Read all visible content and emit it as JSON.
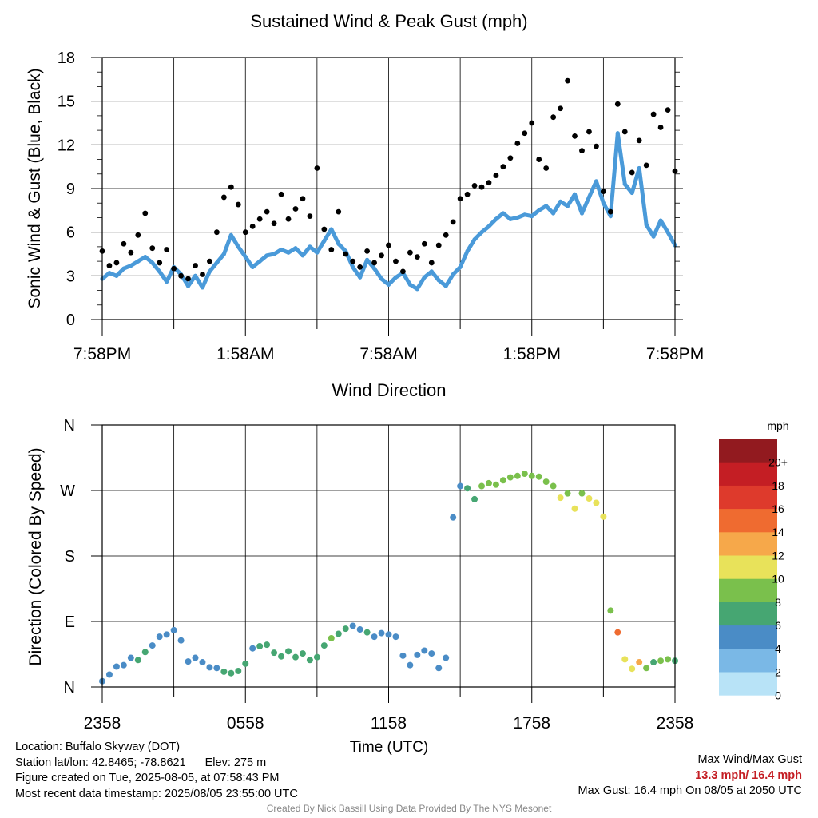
{
  "chart_data": [
    {
      "type": "scatter",
      "title": "Sustained Wind & Peak Gust (mph)",
      "ylabel": "Sonic Wind & Gust (Blue, Black)",
      "xlabel": "",
      "ylim": [
        0,
        18
      ],
      "yticks": [
        "0",
        "3",
        "6",
        "9",
        "12",
        "15",
        "18"
      ],
      "xticks": [
        "7:58PM",
        "1:58AM",
        "7:58AM",
        "1:58PM",
        "7:58PM"
      ],
      "xlim_hours": [
        0,
        24
      ],
      "grid": true,
      "colors": {
        "sustained": "#4a9ad9",
        "gust": "#000000"
      },
      "series": [
        {
          "name": "Sonic Wind",
          "hours": [
            0,
            0.3,
            0.6,
            0.9,
            1.2,
            1.5,
            1.8,
            2.1,
            2.4,
            2.7,
            3.0,
            3.3,
            3.6,
            3.9,
            4.2,
            4.5,
            4.8,
            5.1,
            5.4,
            5.7,
            6.0,
            6.3,
            6.6,
            6.9,
            7.2,
            7.5,
            7.8,
            8.1,
            8.4,
            8.7,
            9.0,
            9.3,
            9.6,
            9.9,
            10.2,
            10.5,
            10.8,
            11.1,
            11.4,
            11.7,
            12.0,
            12.3,
            12.6,
            12.9,
            13.2,
            13.5,
            13.8,
            14.1,
            14.4,
            14.7,
            15.0,
            15.3,
            15.6,
            15.9,
            16.2,
            16.5,
            16.8,
            17.1,
            17.4,
            17.7,
            18.0,
            18.3,
            18.6,
            18.9,
            19.2,
            19.5,
            19.8,
            20.1,
            20.4,
            20.7,
            21.0,
            21.3,
            21.6,
            21.9,
            22.2,
            22.5,
            22.8,
            23.1,
            23.4,
            23.7,
            24.0
          ],
          "values": [
            2.8,
            3.2,
            3.0,
            3.5,
            3.7,
            4.0,
            4.3,
            3.9,
            3.3,
            2.6,
            3.6,
            3.1,
            2.3,
            3.0,
            2.2,
            3.3,
            3.9,
            4.5,
            5.8,
            5.0,
            4.3,
            3.6,
            4.0,
            4.4,
            4.5,
            4.8,
            4.6,
            4.9,
            4.4,
            5.0,
            4.6,
            5.4,
            6.2,
            5.2,
            4.7,
            3.6,
            2.9,
            4.1,
            3.5,
            2.8,
            2.4,
            2.9,
            3.2,
            2.4,
            2.1,
            2.9,
            3.3,
            2.7,
            2.3,
            3.1,
            3.6,
            4.7,
            5.5,
            6.0,
            6.4,
            6.9,
            7.3,
            6.9,
            7.0,
            7.2,
            7.1,
            7.5,
            7.8,
            7.3,
            8.1,
            7.8,
            8.6,
            7.3,
            8.4,
            9.5,
            8.0,
            7.1,
            12.8,
            9.3,
            8.7,
            10.4,
            6.5,
            5.7,
            6.8,
            6.0,
            5.1
          ],
          "unit": "mph"
        },
        {
          "name": "Peak Gust",
          "hours": [
            0,
            0.3,
            0.6,
            0.9,
            1.2,
            1.5,
            1.8,
            2.1,
            2.4,
            2.7,
            3.0,
            3.3,
            3.6,
            3.9,
            4.2,
            4.5,
            4.8,
            5.1,
            5.4,
            5.7,
            6.0,
            6.3,
            6.6,
            6.9,
            7.2,
            7.5,
            7.8,
            8.1,
            8.4,
            8.7,
            9.0,
            9.3,
            9.6,
            9.9,
            10.2,
            10.5,
            10.8,
            11.1,
            11.4,
            11.7,
            12.0,
            12.3,
            12.6,
            12.9,
            13.2,
            13.5,
            13.8,
            14.1,
            14.4,
            14.7,
            15.0,
            15.3,
            15.6,
            15.9,
            16.2,
            16.5,
            16.8,
            17.1,
            17.4,
            17.7,
            18.0,
            18.3,
            18.6,
            18.9,
            19.2,
            19.5,
            19.8,
            20.1,
            20.4,
            20.7,
            21.0,
            21.3,
            21.6,
            21.9,
            22.2,
            22.5,
            22.8,
            23.1,
            23.4,
            23.7,
            24.0
          ],
          "values": [
            4.7,
            3.7,
            3.9,
            5.2,
            4.6,
            5.8,
            7.3,
            4.9,
            3.9,
            4.8,
            3.5,
            3.0,
            2.8,
            3.7,
            3.1,
            4.0,
            6.0,
            8.4,
            9.1,
            7.9,
            6.0,
            6.4,
            6.9,
            7.4,
            6.6,
            8.6,
            6.9,
            7.6,
            8.3,
            7.1,
            10.4,
            6.2,
            4.8,
            7.4,
            4.5,
            4.0,
            3.6,
            4.7,
            3.9,
            4.4,
            5.1,
            4.0,
            3.3,
            4.6,
            4.3,
            5.2,
            3.9,
            5.1,
            5.8,
            6.7,
            8.3,
            8.6,
            9.2,
            9.1,
            9.4,
            9.9,
            10.5,
            11.1,
            12.1,
            12.8,
            13.5,
            11.0,
            10.4,
            13.9,
            14.5,
            16.4,
            12.6,
            11.6,
            12.9,
            11.9,
            8.8,
            7.4,
            14.8,
            12.9,
            10.1,
            12.3,
            10.6,
            14.1,
            13.2,
            14.4,
            10.2
          ],
          "unit": "mph"
        }
      ]
    },
    {
      "type": "scatter",
      "title": "Wind Direction",
      "ylabel": "Direction (Colored By Speed)",
      "xlabel": "Time (UTC)",
      "ylim_deg": [
        0,
        360
      ],
      "yticks": [
        "N",
        "E",
        "S",
        "W",
        "N"
      ],
      "xticks": [
        "2358",
        "0558",
        "1158",
        "1758",
        "2358"
      ],
      "grid": true,
      "points": {
        "hours": [
          0,
          0.3,
          0.6,
          0.9,
          1.2,
          1.5,
          1.8,
          2.1,
          2.4,
          2.7,
          3.0,
          3.3,
          3.6,
          3.9,
          4.2,
          4.5,
          4.8,
          5.1,
          5.4,
          5.7,
          6.0,
          6.3,
          6.6,
          6.9,
          7.2,
          7.5,
          7.8,
          8.1,
          8.4,
          8.7,
          9.0,
          9.3,
          9.6,
          9.9,
          10.2,
          10.5,
          10.8,
          11.1,
          11.4,
          11.7,
          12.0,
          12.3,
          12.6,
          12.9,
          13.2,
          13.5,
          13.8,
          14.1,
          14.4,
          14.7,
          15.0,
          15.3,
          15.6,
          15.9,
          16.2,
          16.5,
          16.8,
          17.1,
          17.4,
          17.7,
          18.0,
          18.3,
          18.6,
          18.9,
          19.2,
          19.5,
          19.8,
          20.1,
          20.4,
          20.7,
          21.0,
          21.3,
          21.6,
          21.9,
          22.2,
          22.5,
          22.8,
          23.1,
          23.4,
          23.7,
          24.0
        ],
        "direction_deg": [
          8,
          17,
          28,
          30,
          40,
          37,
          48,
          57,
          69,
          72,
          78,
          64,
          35,
          40,
          34,
          27,
          26,
          21,
          19,
          22,
          32,
          53,
          56,
          58,
          47,
          42,
          49,
          41,
          46,
          37,
          41,
          57,
          67,
          73,
          80,
          84,
          79,
          75,
          69,
          74,
          72,
          69,
          43,
          30,
          44,
          50,
          46,
          26,
          40,
          233,
          276,
          273,
          258,
          276,
          280,
          278,
          284,
          288,
          290,
          293,
          290,
          289,
          282,
          276,
          260,
          266,
          245,
          266,
          259,
          253,
          234,
          105,
          75,
          38,
          25,
          34,
          26,
          34,
          36,
          38,
          36
        ],
        "speed_mph": [
          2.8,
          3.2,
          3.0,
          3.5,
          3.7,
          4.0,
          4.3,
          3.9,
          3.3,
          2.6,
          3.6,
          3.1,
          2.3,
          3.0,
          2.2,
          3.3,
          3.9,
          4.5,
          5.8,
          5.0,
          4.3,
          3.6,
          4.0,
          4.4,
          4.5,
          4.8,
          4.6,
          4.9,
          4.4,
          5.0,
          4.6,
          5.4,
          6.2,
          5.2,
          4.7,
          3.6,
          2.9,
          4.1,
          3.5,
          2.8,
          2.4,
          2.9,
          3.2,
          2.4,
          2.1,
          2.9,
          3.3,
          2.7,
          2.3,
          3.1,
          3.6,
          4.7,
          5.5,
          6.0,
          6.4,
          6.9,
          7.3,
          6.9,
          7.0,
          7.2,
          7.1,
          7.5,
          7.8,
          7.3,
          8.1,
          7.8,
          8.6,
          7.3,
          8.4,
          9.5,
          8.0,
          7.1,
          12.8,
          9.3,
          8.7,
          10.4,
          6.5,
          5.7,
          6.8,
          6.0,
          5.1
        ]
      },
      "colorbar": {
        "unit": "mph",
        "labels": [
          "0",
          "2",
          "4",
          "6",
          "8",
          "10",
          "12",
          "14",
          "16",
          "18",
          "20+"
        ],
        "colors": [
          "#b8e3f7",
          "#7ab8e6",
          "#4a8cc6",
          "#46a672",
          "#7ac04c",
          "#e8e25a",
          "#f6a84a",
          "#ef6b30",
          "#de3a2c",
          "#c41e24",
          "#921a1f"
        ]
      }
    }
  ],
  "footer": {
    "location": "Location: Buffalo Skyway (DOT)",
    "station_coords": "Station lat/lon: 42.8465; -78.8621",
    "elevation": "Elev: 275 m",
    "created": "Figure created on Tue, 2025-08-05, at 07:58:43 PM",
    "recent": "Most recent data timestamp: 2025/08/05 23:55:00 UTC",
    "max_title": "Max Wind/Max Gust",
    "max_values": "13.3 mph/ 16.4 mph",
    "max_gust": "Max Gust: 16.4 mph On 08/05 at 2050 UTC",
    "credit": "Created By Nick Bassill Using Data Provided By The NYS Mesonet"
  }
}
